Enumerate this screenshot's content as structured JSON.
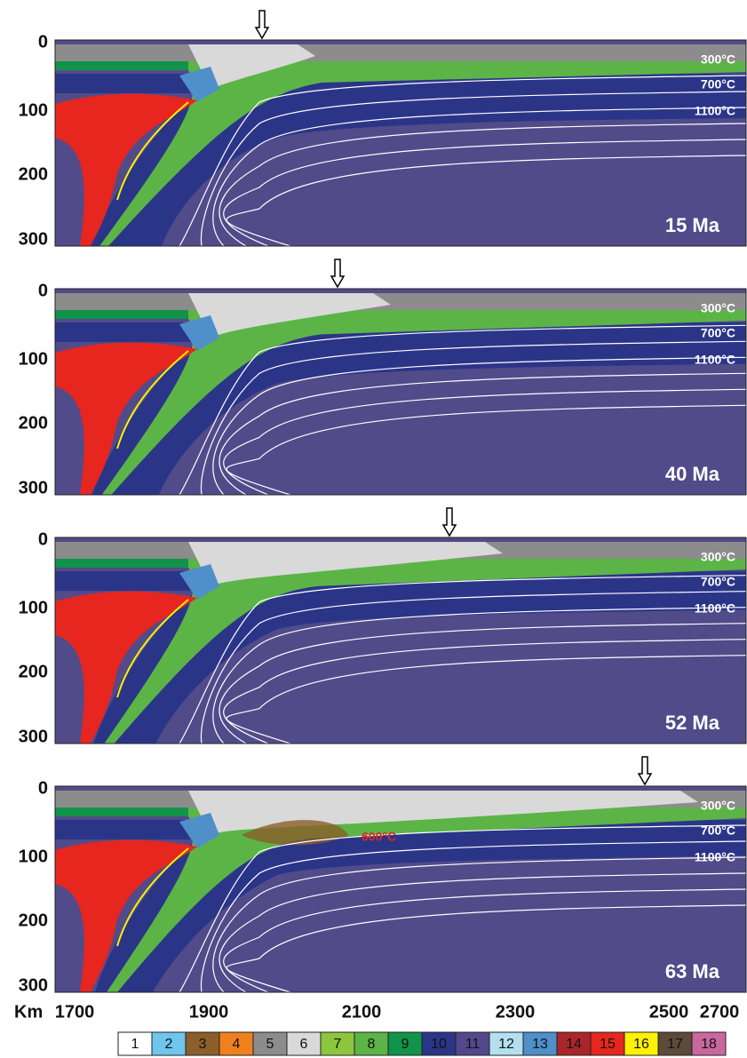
{
  "panels": [
    {
      "age": "15 Ma",
      "isotherms": [
        "300°C",
        "700°C",
        "1100°C"
      ]
    },
    {
      "age": "40 Ma",
      "isotherms": [
        "300°C",
        "700°C",
        "1100°C"
      ]
    },
    {
      "age": "52 Ma",
      "isotherms": [
        "300°C",
        "700°C",
        "1100°C"
      ]
    },
    {
      "age": "63 Ma",
      "isotherms": [
        "300°C",
        "700°C",
        "1100°C"
      ],
      "annotation": "600°C"
    }
  ],
  "depth_labels": [
    "0",
    "100",
    "200",
    "300"
  ],
  "distance_unit": "Km",
  "distance_labels": [
    "1700",
    "1900",
    "2100",
    "2300",
    "2500",
    "2700"
  ],
  "legend": [
    {
      "label": "1",
      "color": "#ffffff"
    },
    {
      "label": "2",
      "color": "#6ec6ec"
    },
    {
      "label": "3",
      "color": "#8b5e2a"
    },
    {
      "label": "4",
      "color": "#f07f1e"
    },
    {
      "label": "5",
      "color": "#8c8c8c"
    },
    {
      "label": "6",
      "color": "#d9d9d9"
    },
    {
      "label": "7",
      "color": "#8cc63e"
    },
    {
      "label": "8",
      "color": "#5cb447"
    },
    {
      "label": "9",
      "color": "#12934a"
    },
    {
      "label": "10",
      "color": "#2b3588"
    },
    {
      "label": "11",
      "color": "#54488c"
    },
    {
      "label": "12",
      "color": "#b3dfee"
    },
    {
      "label": "13",
      "color": "#4f8fca"
    },
    {
      "label": "14",
      "color": "#a9262a"
    },
    {
      "label": "15",
      "color": "#e6261f"
    },
    {
      "label": "16",
      "color": "#fff200"
    },
    {
      "label": "17",
      "color": "#5c4b3a"
    },
    {
      "label": "18",
      "color": "#c9689e"
    }
  ]
}
